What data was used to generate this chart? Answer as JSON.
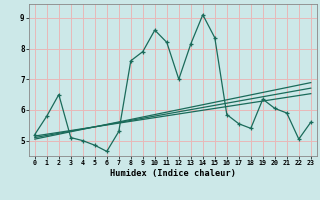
{
  "title": "",
  "xlabel": "Humidex (Indice chaleur)",
  "x_values": [
    0,
    1,
    2,
    3,
    4,
    5,
    6,
    7,
    8,
    9,
    10,
    11,
    12,
    13,
    14,
    15,
    16,
    17,
    18,
    19,
    20,
    21,
    22,
    23
  ],
  "line1": [
    5.2,
    5.8,
    6.5,
    5.1,
    5.0,
    4.85,
    4.65,
    5.3,
    7.6,
    7.9,
    8.6,
    8.2,
    7.0,
    8.15,
    9.1,
    8.35,
    5.85,
    5.55,
    5.4,
    6.35,
    6.05,
    5.9,
    5.05,
    5.6
  ],
  "trend1": [
    5.05,
    5.13,
    5.21,
    5.29,
    5.37,
    5.45,
    5.53,
    5.61,
    5.69,
    5.77,
    5.85,
    5.93,
    6.01,
    6.09,
    6.17,
    6.25,
    6.33,
    6.41,
    6.49,
    6.57,
    6.65,
    6.73,
    6.81,
    6.89
  ],
  "trend2": [
    5.1,
    5.17,
    5.24,
    5.31,
    5.38,
    5.45,
    5.52,
    5.59,
    5.66,
    5.73,
    5.8,
    5.87,
    5.94,
    6.01,
    6.08,
    6.15,
    6.22,
    6.29,
    6.36,
    6.43,
    6.5,
    6.57,
    6.64,
    6.71
  ],
  "trend3": [
    5.15,
    5.21,
    5.27,
    5.33,
    5.39,
    5.45,
    5.51,
    5.57,
    5.63,
    5.69,
    5.75,
    5.81,
    5.87,
    5.93,
    5.99,
    6.05,
    6.11,
    6.17,
    6.23,
    6.29,
    6.35,
    6.41,
    6.47,
    6.53
  ],
  "color": "#1a6b5a",
  "bg_color": "#cce8e8",
  "grid_color": "#e8b8b8",
  "ylim_min": 4.5,
  "ylim_max": 9.45,
  "xlim_min": -0.5,
  "xlim_max": 23.5,
  "yticks": [
    5,
    6,
    7,
    8,
    9
  ],
  "xticks": [
    0,
    1,
    2,
    3,
    4,
    5,
    6,
    7,
    8,
    9,
    10,
    11,
    12,
    13,
    14,
    15,
    16,
    17,
    18,
    19,
    20,
    21,
    22,
    23
  ]
}
